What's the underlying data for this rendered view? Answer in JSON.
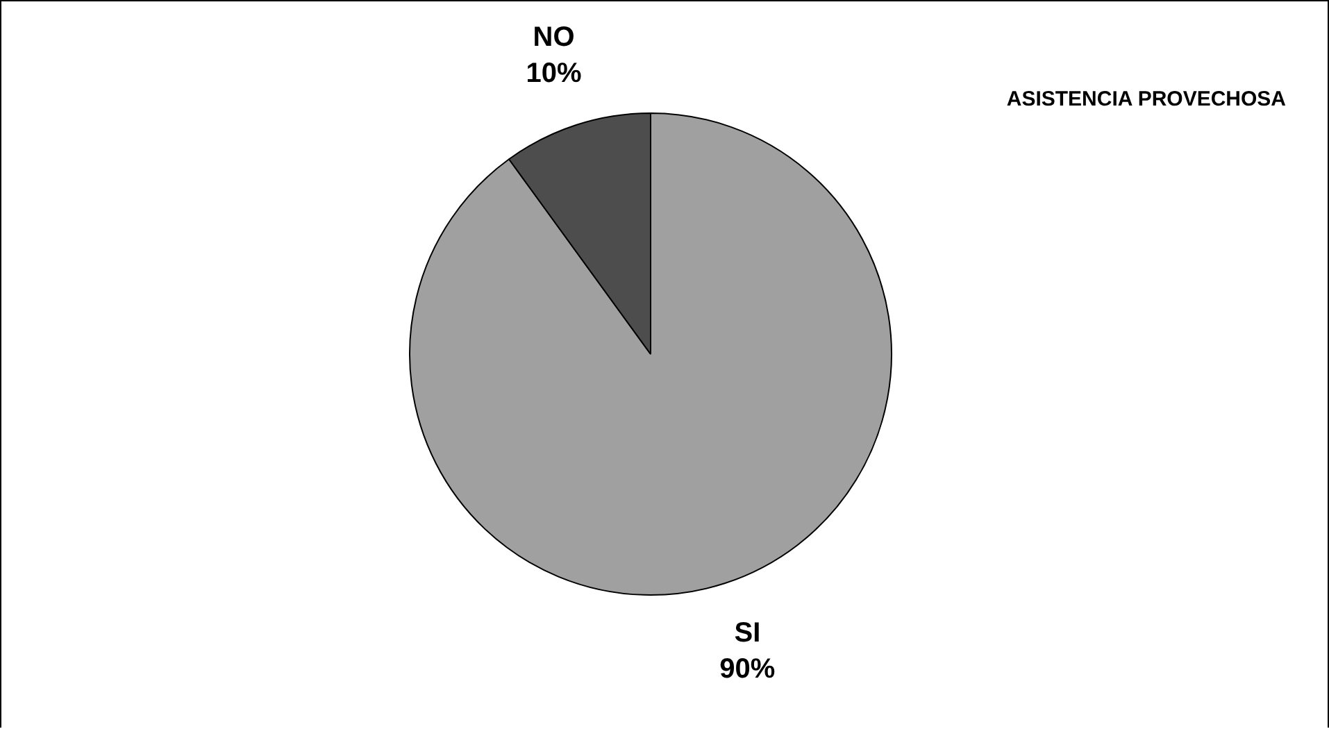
{
  "chart_data": {
    "type": "pie",
    "title": "ASISTENCIA PROVECHOSA",
    "categories": [
      "SI",
      "NO"
    ],
    "values": [
      90,
      10
    ],
    "colors": [
      "#a0a0a0",
      "#4d4d4d"
    ],
    "value_labels": [
      "90%",
      "10%"
    ],
    "legend": false
  }
}
